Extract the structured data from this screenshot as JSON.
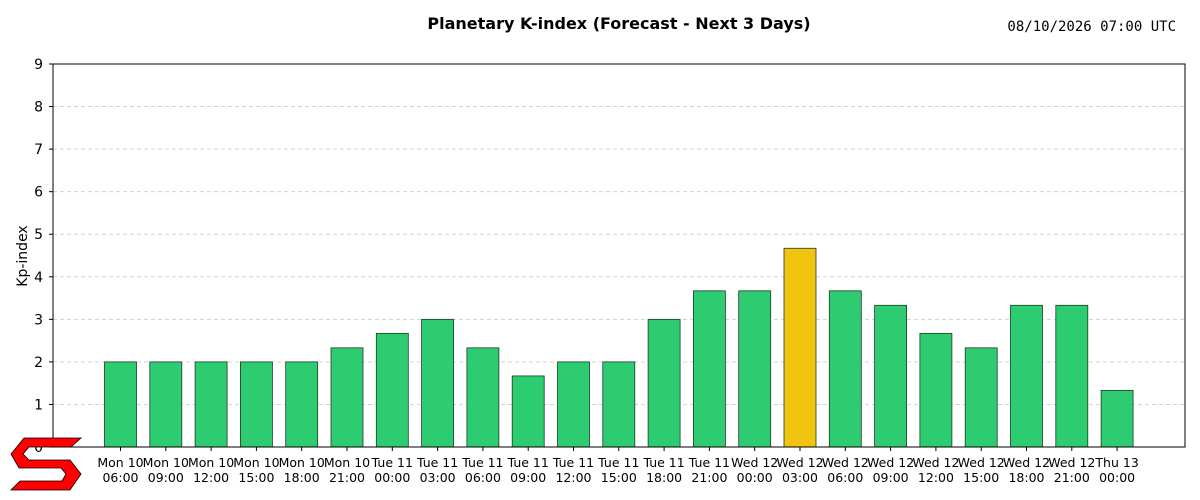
{
  "chart_data": {
    "type": "bar",
    "title": "Planetary K-index (Forecast - Next 3 Days)",
    "timestamp": "08/10/2026 07:00 UTC",
    "xlabel": "",
    "ylabel": "Kp-index",
    "ylim": [
      0,
      9
    ],
    "yticks": [
      "0",
      "1",
      "2",
      "3",
      "4",
      "5",
      "6",
      "7",
      "8",
      "9"
    ],
    "grid": true,
    "categories": [
      [
        "Mon 10",
        "06:00"
      ],
      [
        "Mon 10",
        "09:00"
      ],
      [
        "Mon 10",
        "12:00"
      ],
      [
        "Mon 10",
        "15:00"
      ],
      [
        "Mon 10",
        "18:00"
      ],
      [
        "Mon 10",
        "21:00"
      ],
      [
        "Tue 11",
        "00:00"
      ],
      [
        "Tue 11",
        "03:00"
      ],
      [
        "Tue 11",
        "06:00"
      ],
      [
        "Tue 11",
        "09:00"
      ],
      [
        "Tue 11",
        "12:00"
      ],
      [
        "Tue 11",
        "15:00"
      ],
      [
        "Tue 11",
        "18:00"
      ],
      [
        "Tue 11",
        "21:00"
      ],
      [
        "Wed 12",
        "00:00"
      ],
      [
        "Wed 12",
        "03:00"
      ],
      [
        "Wed 12",
        "06:00"
      ],
      [
        "Wed 12",
        "09:00"
      ],
      [
        "Wed 12",
        "12:00"
      ],
      [
        "Wed 12",
        "15:00"
      ],
      [
        "Wed 12",
        "18:00"
      ],
      [
        "Wed 12",
        "21:00"
      ],
      [
        "Thu 13",
        "00:00"
      ]
    ],
    "values": [
      2.0,
      2.0,
      2.0,
      2.0,
      2.0,
      2.33,
      2.67,
      3.0,
      2.33,
      1.67,
      2.0,
      2.0,
      3.0,
      3.67,
      3.67,
      4.67,
      3.67,
      3.33,
      2.67,
      2.33,
      3.33,
      3.33,
      1.33
    ],
    "colors": {
      "quiet": "#2ecc71",
      "active": "#f1c40f",
      "logo": "#ff0000"
    },
    "color_rule": "values below 4 use quiet color; 4 and above use active color"
  }
}
